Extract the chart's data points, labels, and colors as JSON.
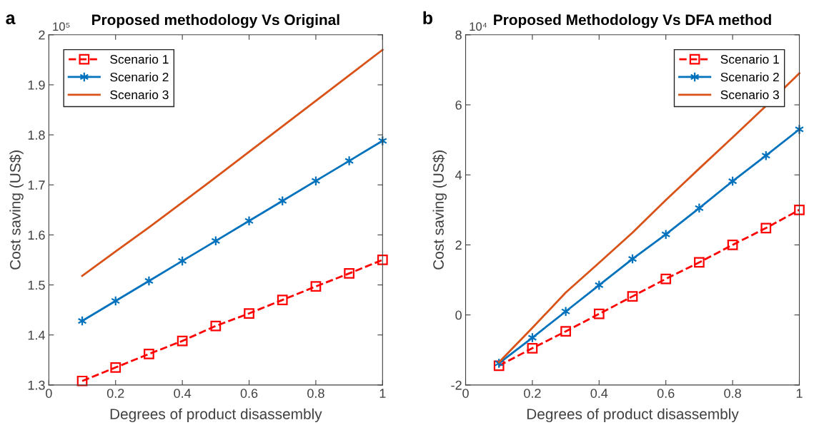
{
  "chart_data": [
    {
      "type": "line",
      "title": "Proposed methodology Vs Original",
      "xlabel": "Degrees of product disassembly",
      "ylabel": "Cost saving (US$)",
      "annotations": [
        "a",
        "10⁵"
      ],
      "x": [
        0.1,
        0.2,
        0.3,
        0.4,
        0.5,
        0.6,
        0.7,
        0.8,
        0.9,
        1.0
      ],
      "series": [
        {
          "name": "Scenario 1",
          "color": "#ff0000",
          "marker": "square",
          "line_style": "dashed",
          "values": [
            1.308,
            1.335,
            1.362,
            1.388,
            1.418,
            1.443,
            1.47,
            1.497,
            1.523,
            1.55
          ]
        },
        {
          "name": "Scenario 2",
          "color": "#0072bd",
          "marker": "cross",
          "line_style": "solid",
          "values": [
            1.428,
            1.468,
            1.508,
            1.548,
            1.588,
            1.628,
            1.668,
            1.708,
            1.748,
            1.788
          ]
        },
        {
          "name": "Scenario 3",
          "color": "#d95319",
          "marker": "none",
          "line_style": "solid",
          "values": [
            1.518,
            1.567,
            1.615,
            1.665,
            1.715,
            1.766,
            1.817,
            1.868,
            1.919,
            1.97
          ]
        }
      ],
      "xlim": [
        0,
        1
      ],
      "xticks": [
        0,
        0.2,
        0.4,
        0.6,
        0.8,
        1
      ],
      "ylim": [
        1.3,
        2
      ],
      "yticks": [
        1.3,
        1.4,
        1.5,
        1.6,
        1.7,
        1.8,
        1.9,
        2
      ],
      "grid": false,
      "legend": "top left"
    },
    {
      "type": "line",
      "title": "Proposed Methodology Vs DFA method",
      "xlabel": "Degrees of product disassembly",
      "ylabel": "Cost saving (US$)",
      "annotations": [
        "b",
        "10⁴"
      ],
      "x": [
        0.1,
        0.2,
        0.3,
        0.4,
        0.5,
        0.6,
        0.7,
        0.8,
        0.9,
        1.0
      ],
      "series": [
        {
          "name": "Scenario 1",
          "color": "#ff0000",
          "marker": "square",
          "line_style": "dashed",
          "values": [
            -1.45,
            -0.95,
            -0.47,
            0.03,
            0.53,
            1.03,
            1.5,
            2.0,
            2.48,
            3.0
          ]
        },
        {
          "name": "Scenario 2",
          "color": "#0072bd",
          "marker": "cross",
          "line_style": "solid",
          "values": [
            -1.38,
            -0.65,
            0.1,
            0.85,
            1.6,
            2.3,
            3.05,
            3.82,
            4.55,
            5.3
          ]
        },
        {
          "name": "Scenario 3",
          "color": "#d95319",
          "marker": "none",
          "line_style": "solid",
          "values": [
            -1.35,
            -0.37,
            0.64,
            1.49,
            2.35,
            3.28,
            4.18,
            5.07,
            5.97,
            6.9
          ]
        }
      ],
      "xlim": [
        0,
        1
      ],
      "xticks": [
        0,
        0.2,
        0.4,
        0.6,
        0.8,
        1
      ],
      "ylim": [
        -2,
        8
      ],
      "yticks": [
        -2,
        0,
        2,
        4,
        6,
        8
      ],
      "grid": false,
      "legend": "top right"
    }
  ]
}
